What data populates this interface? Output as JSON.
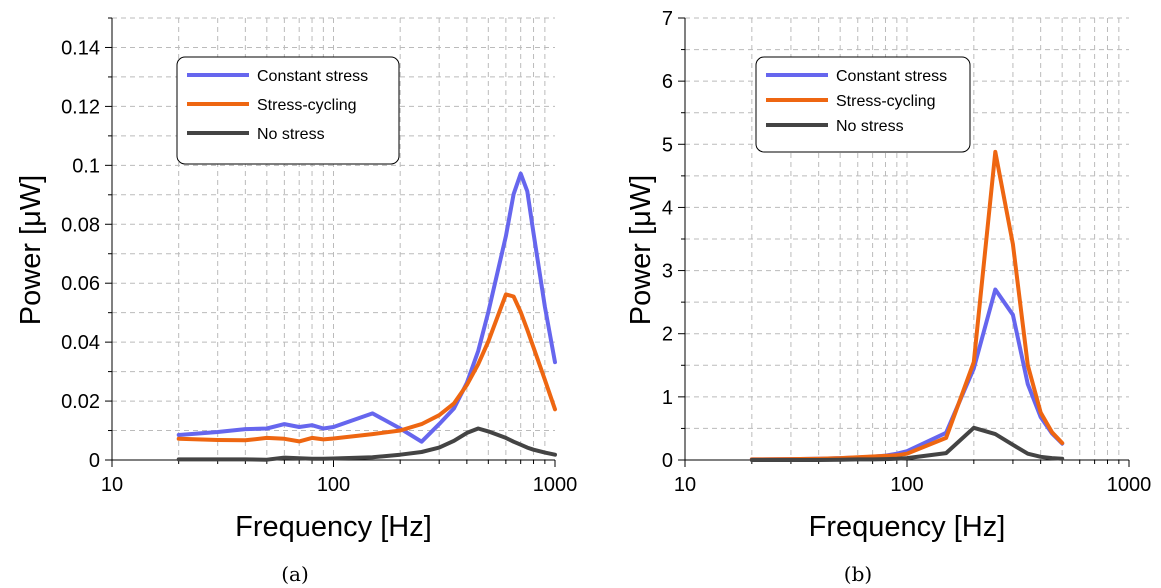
{
  "chart_data": [
    {
      "type": "line",
      "caption": "(a)",
      "xlabel": "Frequency [Hz]",
      "ylabel": "Power [μW]",
      "xscale": "log",
      "xlim": [
        10,
        1000
      ],
      "ylim": [
        0,
        0.15
      ],
      "xticks": [
        10,
        100,
        1000
      ],
      "xtick_labels": [
        "10",
        "100",
        "1000"
      ],
      "yticks": [
        0,
        0.02,
        0.04,
        0.06,
        0.08,
        0.1,
        0.12,
        0.14
      ],
      "ytick_labels": [
        "0",
        "0.02",
        "0.04",
        "0.06",
        "0.08",
        "0.1",
        "0.12",
        "0.14"
      ],
      "grid": true,
      "legend_position": "upper-center",
      "series": [
        {
          "name": "Constant stress",
          "color": "#6666ee",
          "x": [
            20,
            30,
            40,
            50,
            60,
            70,
            80,
            90,
            100,
            150,
            200,
            250,
            300,
            350,
            400,
            450,
            500,
            600,
            650,
            700,
            750,
            800,
            900,
            1000
          ],
          "y": [
            0.0085,
            0.0095,
            0.0105,
            0.0107,
            0.0122,
            0.0112,
            0.0118,
            0.0107,
            0.0112,
            0.0158,
            0.0107,
            0.0062,
            0.0122,
            0.0175,
            0.0262,
            0.037,
            0.0502,
            0.076,
            0.0902,
            0.0972,
            0.0912,
            0.077,
            0.052,
            0.0332
          ]
        },
        {
          "name": "Stress-cycling",
          "color": "#ee6611",
          "x": [
            20,
            30,
            40,
            50,
            60,
            70,
            80,
            90,
            100,
            150,
            200,
            250,
            300,
            350,
            400,
            450,
            500,
            600,
            650,
            700,
            750,
            800,
            900,
            1000
          ],
          "y": [
            0.0072,
            0.0068,
            0.0067,
            0.0075,
            0.0072,
            0.0063,
            0.0075,
            0.007,
            0.0073,
            0.0088,
            0.01,
            0.0122,
            0.0152,
            0.0192,
            0.0255,
            0.0325,
            0.0402,
            0.0562,
            0.0555,
            0.0502,
            0.0442,
            0.0382,
            0.0272,
            0.0172
          ]
        },
        {
          "name": "No stress",
          "color": "#444444",
          "x": [
            20,
            30,
            40,
            50,
            60,
            70,
            80,
            90,
            100,
            150,
            200,
            250,
            300,
            350,
            400,
            450,
            500,
            600,
            650,
            700,
            750,
            800,
            900,
            1000
          ],
          "y": [
            0.0002,
            0.0002,
            0.0002,
            0.0001,
            0.0008,
            0.0006,
            0.0004,
            0.0004,
            0.0005,
            0.0009,
            0.0018,
            0.0027,
            0.0042,
            0.0065,
            0.0092,
            0.0107,
            0.0097,
            0.0075,
            0.0062,
            0.0052,
            0.0042,
            0.0035,
            0.0025,
            0.0018
          ]
        }
      ]
    },
    {
      "type": "line",
      "caption": "(b)",
      "xlabel": "Frequency [Hz]",
      "ylabel": "Power [μW]",
      "xscale": "log",
      "xlim": [
        10,
        1000
      ],
      "ylim": [
        0,
        7
      ],
      "xticks": [
        10,
        100,
        1000
      ],
      "xtick_labels": [
        "10",
        "100",
        "1000"
      ],
      "yticks": [
        0,
        1,
        2,
        3,
        4,
        5,
        6,
        7
      ],
      "ytick_labels": [
        "0",
        "1",
        "2",
        "3",
        "4",
        "5",
        "6",
        "7"
      ],
      "grid": true,
      "legend_position": "upper-left",
      "series": [
        {
          "name": "Constant stress",
          "color": "#6666ee",
          "x": [
            20,
            30,
            40,
            50,
            60,
            70,
            80,
            90,
            100,
            150,
            200,
            250,
            300,
            350,
            400,
            450,
            500
          ],
          "y": [
            0.01,
            0.015,
            0.02,
            0.03,
            0.04,
            0.05,
            0.07,
            0.1,
            0.14,
            0.43,
            1.45,
            2.7,
            2.3,
            1.2,
            0.68,
            0.42,
            0.26
          ]
        },
        {
          "name": "Stress-cycling",
          "color": "#ee6611",
          "x": [
            20,
            30,
            40,
            50,
            60,
            70,
            80,
            90,
            100,
            150,
            200,
            250,
            300,
            350,
            400,
            450,
            500
          ],
          "y": [
            0.01,
            0.015,
            0.02,
            0.03,
            0.045,
            0.055,
            0.065,
            0.075,
            0.1,
            0.35,
            1.55,
            4.88,
            3.42,
            1.5,
            0.75,
            0.44,
            0.27
          ]
        },
        {
          "name": "No stress",
          "color": "#444444",
          "x": [
            20,
            30,
            40,
            50,
            60,
            70,
            80,
            90,
            100,
            150,
            200,
            250,
            300,
            350,
            400,
            450,
            500
          ],
          "y": [
            0.0,
            0.0,
            0.0,
            0.005,
            0.01,
            0.01,
            0.015,
            0.02,
            0.03,
            0.11,
            0.51,
            0.41,
            0.24,
            0.1,
            0.05,
            0.03,
            0.02
          ]
        }
      ]
    }
  ]
}
